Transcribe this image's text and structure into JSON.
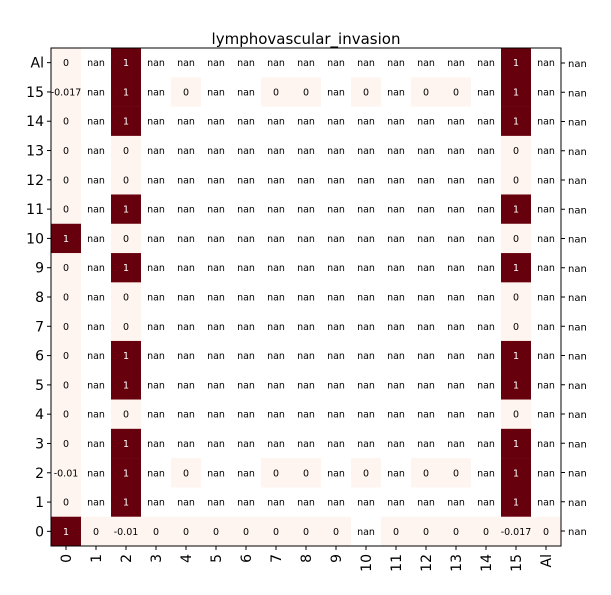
{
  "chart_data": {
    "type": "heatmap",
    "title": "lymphovascular_invasion",
    "x_categories": [
      "0",
      "1",
      "2",
      "3",
      "4",
      "5",
      "6",
      "7",
      "8",
      "9",
      "10",
      "11",
      "12",
      "13",
      "14",
      "15",
      "Al"
    ],
    "y_categories_top_to_bottom": [
      "Al",
      "15",
      "14",
      "13",
      "12",
      "11",
      "10",
      "9",
      "8",
      "7",
      "6",
      "5",
      "4",
      "3",
      "2",
      "1",
      "0"
    ],
    "colormap": {
      "low": "#fff5f0",
      "high": "#67000d"
    },
    "value_range": [
      0,
      1
    ],
    "grid": false,
    "cells": [
      [
        "0",
        "nan",
        "1",
        "nan",
        "nan",
        "nan",
        "nan",
        "nan",
        "nan",
        "nan",
        "nan",
        "nan",
        "nan",
        "nan",
        "nan",
        "1",
        "nan"
      ],
      [
        "-0.017",
        "nan",
        "1",
        "nan",
        "0",
        "nan",
        "nan",
        "0",
        "0",
        "nan",
        "0",
        "nan",
        "0",
        "0",
        "nan",
        "1",
        "nan"
      ],
      [
        "0",
        "nan",
        "1",
        "nan",
        "nan",
        "nan",
        "nan",
        "nan",
        "nan",
        "nan",
        "nan",
        "nan",
        "nan",
        "nan",
        "nan",
        "1",
        "nan"
      ],
      [
        "0",
        "nan",
        "0",
        "nan",
        "nan",
        "nan",
        "nan",
        "nan",
        "nan",
        "nan",
        "nan",
        "nan",
        "nan",
        "nan",
        "nan",
        "0",
        "nan"
      ],
      [
        "0",
        "nan",
        "0",
        "nan",
        "nan",
        "nan",
        "nan",
        "nan",
        "nan",
        "nan",
        "nan",
        "nan",
        "nan",
        "nan",
        "nan",
        "0",
        "nan"
      ],
      [
        "0",
        "nan",
        "1",
        "nan",
        "nan",
        "nan",
        "nan",
        "nan",
        "nan",
        "nan",
        "nan",
        "nan",
        "nan",
        "nan",
        "nan",
        "1",
        "nan"
      ],
      [
        "1",
        "nan",
        "0",
        "nan",
        "nan",
        "nan",
        "nan",
        "nan",
        "nan",
        "nan",
        "nan",
        "nan",
        "nan",
        "nan",
        "nan",
        "0",
        "nan"
      ],
      [
        "0",
        "nan",
        "1",
        "nan",
        "nan",
        "nan",
        "nan",
        "nan",
        "nan",
        "nan",
        "nan",
        "nan",
        "nan",
        "nan",
        "nan",
        "1",
        "nan"
      ],
      [
        "0",
        "nan",
        "0",
        "nan",
        "nan",
        "nan",
        "nan",
        "nan",
        "nan",
        "nan",
        "nan",
        "nan",
        "nan",
        "nan",
        "nan",
        "0",
        "nan"
      ],
      [
        "0",
        "nan",
        "0",
        "nan",
        "nan",
        "nan",
        "nan",
        "nan",
        "nan",
        "nan",
        "nan",
        "nan",
        "nan",
        "nan",
        "nan",
        "0",
        "nan"
      ],
      [
        "0",
        "nan",
        "1",
        "nan",
        "nan",
        "nan",
        "nan",
        "nan",
        "nan",
        "nan",
        "nan",
        "nan",
        "nan",
        "nan",
        "nan",
        "1",
        "nan"
      ],
      [
        "0",
        "nan",
        "1",
        "nan",
        "nan",
        "nan",
        "nan",
        "nan",
        "nan",
        "nan",
        "nan",
        "nan",
        "nan",
        "nan",
        "nan",
        "1",
        "nan"
      ],
      [
        "0",
        "nan",
        "0",
        "nan",
        "nan",
        "nan",
        "nan",
        "nan",
        "nan",
        "nan",
        "nan",
        "nan",
        "nan",
        "nan",
        "nan",
        "0",
        "nan"
      ],
      [
        "0",
        "nan",
        "1",
        "nan",
        "nan",
        "nan",
        "nan",
        "nan",
        "nan",
        "nan",
        "nan",
        "nan",
        "nan",
        "nan",
        "nan",
        "1",
        "nan"
      ],
      [
        "-0.01",
        "nan",
        "1",
        "nan",
        "0",
        "nan",
        "nan",
        "0",
        "0",
        "nan",
        "0",
        "nan",
        "0",
        "0",
        "nan",
        "1",
        "nan"
      ],
      [
        "0",
        "nan",
        "1",
        "nan",
        "nan",
        "nan",
        "nan",
        "nan",
        "nan",
        "nan",
        "nan",
        "nan",
        "nan",
        "nan",
        "nan",
        "1",
        "nan"
      ],
      [
        "1",
        "0",
        "-0.01",
        "0",
        "0",
        "0",
        "0",
        "0",
        "0",
        "0",
        "nan",
        "0",
        "0",
        "0",
        "0",
        "-0.017",
        "0"
      ]
    ],
    "right_labels_top_to_bottom": [
      "nan",
      "nan",
      "nan",
      "nan",
      "nan",
      "nan",
      "nan",
      "nan",
      "nan",
      "nan",
      "nan",
      "nan",
      "nan",
      "nan",
      "nan",
      "nan",
      "nan"
    ]
  }
}
